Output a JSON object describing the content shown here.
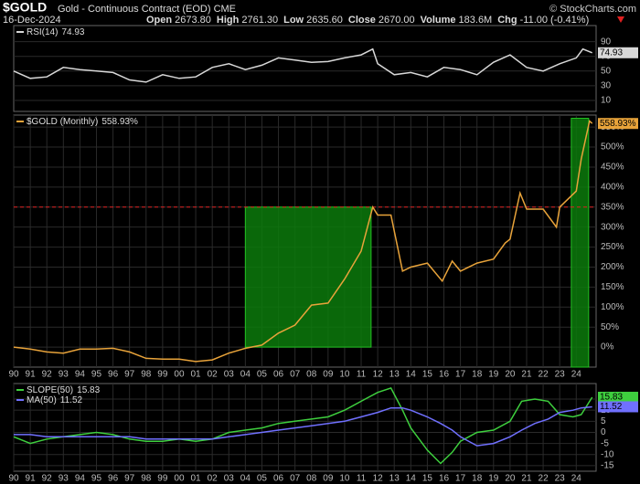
{
  "header": {
    "symbol": "$GOLD",
    "name": "Gold - Continuous Contract (EOD)",
    "exchange": "CME",
    "credit": "© StockCharts.com",
    "date": "16-Dec-2024",
    "quote": [
      {
        "label": "Open",
        "value": "2673.80"
      },
      {
        "label": "High",
        "value": "2761.30"
      },
      {
        "label": "Low",
        "value": "2635.60"
      },
      {
        "label": "Close",
        "value": "2670.00"
      },
      {
        "label": "Volume",
        "value": "183.6M"
      },
      {
        "label": "Chg",
        "value": "-11.00 (-0.41%)"
      }
    ]
  },
  "chart_data": [
    {
      "type": "line",
      "ylim": [
        -5,
        112
      ],
      "yticks": [
        90,
        70,
        50,
        30,
        10
      ],
      "grid": true,
      "x": [
        1990,
        1991,
        1992,
        1993,
        1994,
        1995,
        1996,
        1997,
        1998,
        1999,
        2000,
        2001,
        2002,
        2003,
        2004,
        2005,
        2006,
        2007,
        2008,
        2009,
        2010,
        2011,
        2011.7,
        2012,
        2013,
        2014,
        2015,
        2016,
        2017,
        2018,
        2019,
        2020,
        2021,
        2022,
        2023,
        2024,
        2024.4,
        2024.96
      ],
      "xlim": [
        1990,
        2025.2
      ],
      "series": [
        {
          "name": "RSI(14)",
          "color": "#d8d8d8",
          "values": [
            50,
            40,
            42,
            55,
            52,
            50,
            48,
            38,
            35,
            45,
            40,
            42,
            55,
            60,
            52,
            58,
            68,
            65,
            62,
            63,
            68,
            72,
            80,
            60,
            45,
            48,
            42,
            55,
            52,
            45,
            62,
            72,
            55,
            50,
            60,
            68,
            80,
            74.93
          ]
        }
      ]
    },
    {
      "type": "line",
      "ylim": [
        -50,
        580
      ],
      "xlim": [
        1990,
        2025.2
      ],
      "grid": true,
      "yticks": [
        {
          "value": 550,
          "label": "550%"
        },
        {
          "value": 500,
          "label": "500%"
        },
        {
          "value": 450,
          "label": "450%"
        },
        {
          "value": 400,
          "label": "400%"
        },
        {
          "value": 350,
          "label": "350%"
        },
        {
          "value": 300,
          "label": "300%"
        },
        {
          "value": 250,
          "label": "250%"
        },
        {
          "value": 200,
          "label": "200%"
        },
        {
          "value": 150,
          "label": "150%"
        },
        {
          "value": 100,
          "label": "100%"
        },
        {
          "value": 50,
          "label": "50%"
        },
        {
          "value": 0,
          "label": "0%"
        }
      ],
      "xticks": [
        {
          "value": 1990,
          "label": "90"
        },
        {
          "value": 1991,
          "label": "91"
        },
        {
          "value": 1992,
          "label": "92"
        },
        {
          "value": 1993,
          "label": "93"
        },
        {
          "value": 1994,
          "label": "94"
        },
        {
          "value": 1995,
          "label": "95"
        },
        {
          "value": 1996,
          "label": "96"
        },
        {
          "value": 1997,
          "label": "97"
        },
        {
          "value": 1998,
          "label": "98"
        },
        {
          "value": 1999,
          "label": "99"
        },
        {
          "value": 2000,
          "label": "00"
        },
        {
          "value": 2001,
          "label": "01"
        },
        {
          "value": 2002,
          "label": "02"
        },
        {
          "value": 2003,
          "label": "03"
        },
        {
          "value": 2004,
          "label": "04"
        },
        {
          "value": 2005,
          "label": "05"
        },
        {
          "value": 2006,
          "label": "06"
        },
        {
          "value": 2007,
          "label": "07"
        },
        {
          "value": 2008,
          "label": "08"
        },
        {
          "value": 2009,
          "label": "09"
        },
        {
          "value": 2010,
          "label": "10"
        },
        {
          "value": 2011,
          "label": "11"
        },
        {
          "value": 2012,
          "label": "12"
        },
        {
          "value": 2013,
          "label": "13"
        },
        {
          "value": 2014,
          "label": "14"
        },
        {
          "value": 2015,
          "label": "15"
        },
        {
          "value": 2016,
          "label": "16"
        },
        {
          "value": 2017,
          "label": "17"
        },
        {
          "value": 2018,
          "label": "18"
        },
        {
          "value": 2019,
          "label": "19"
        },
        {
          "value": 2020,
          "label": "20"
        },
        {
          "value": 2021,
          "label": "21"
        },
        {
          "value": 2022,
          "label": "22"
        },
        {
          "value": 2023,
          "label": "23"
        },
        {
          "value": 2024,
          "label": "24"
        }
      ],
      "highlights": [
        {
          "x": [
            2004,
            2011.6
          ],
          "y": [
            0,
            350
          ],
          "color": "#0c7a0c"
        },
        {
          "x": [
            2023.7,
            2024.75
          ],
          "y": [
            -50,
            572
          ],
          "color": "#0c7a0c"
        }
      ],
      "reference_line": {
        "value": 350,
        "color": "#e02020"
      },
      "x": [
        1990,
        1991,
        1992,
        1993,
        1994,
        1995,
        1996,
        1997,
        1998,
        1999,
        2000,
        2001,
        2002,
        2003,
        2004,
        2005,
        2006,
        2007,
        2008,
        2009,
        2010,
        2011,
        2011.7,
        2012,
        2012.8,
        2013.5,
        2014,
        2015,
        2015.9,
        2016.5,
        2017,
        2018,
        2019,
        2019.7,
        2020,
        2020.6,
        2021,
        2022,
        2022.8,
        2023,
        2024,
        2024.3,
        2024.8,
        2024.96
      ],
      "series": [
        {
          "name": "$GOLD (Monthly)",
          "color": "#e8a33a",
          "last_value_label": "558.93%",
          "values": [
            0,
            -5,
            -12,
            -15,
            -5,
            -5,
            -3,
            -12,
            -28,
            -30,
            -30,
            -36,
            -32,
            -15,
            -3,
            5,
            35,
            55,
            105,
            110,
            170,
            240,
            350,
            330,
            330,
            190,
            200,
            210,
            165,
            215,
            190,
            210,
            220,
            260,
            270,
            385,
            345,
            345,
            300,
            350,
            390,
            470,
            565,
            558.93
          ]
        }
      ]
    },
    {
      "type": "line",
      "ylim": [
        -17.5,
        22
      ],
      "xlim": [
        1990,
        2025.2
      ],
      "grid": true,
      "yticks": [
        15,
        10,
        5,
        0,
        -5,
        -10,
        -15
      ],
      "xticks": [
        {
          "value": 1990,
          "label": "90"
        },
        {
          "value": 1991,
          "label": "91"
        },
        {
          "value": 1992,
          "label": "92"
        },
        {
          "value": 1993,
          "label": "93"
        },
        {
          "value": 1994,
          "label": "94"
        },
        {
          "value": 1995,
          "label": "95"
        },
        {
          "value": 1996,
          "label": "96"
        },
        {
          "value": 1997,
          "label": "97"
        },
        {
          "value": 1998,
          "label": "98"
        },
        {
          "value": 1999,
          "label": "99"
        },
        {
          "value": 2000,
          "label": "00"
        },
        {
          "value": 2001,
          "label": "01"
        },
        {
          "value": 2002,
          "label": "02"
        },
        {
          "value": 2003,
          "label": "03"
        },
        {
          "value": 2004,
          "label": "04"
        },
        {
          "value": 2005,
          "label": "05"
        },
        {
          "value": 2006,
          "label": "06"
        },
        {
          "value": 2007,
          "label": "07"
        },
        {
          "value": 2008,
          "label": "08"
        },
        {
          "value": 2009,
          "label": "09"
        },
        {
          "value": 2010,
          "label": "10"
        },
        {
          "value": 2011,
          "label": "11"
        },
        {
          "value": 2012,
          "label": "12"
        },
        {
          "value": 2013,
          "label": "13"
        },
        {
          "value": 2014,
          "label": "14"
        },
        {
          "value": 2015,
          "label": "15"
        },
        {
          "value": 2016,
          "label": "16"
        },
        {
          "value": 2017,
          "label": "17"
        },
        {
          "value": 2018,
          "label": "18"
        },
        {
          "value": 2019,
          "label": "19"
        },
        {
          "value": 2020,
          "label": "20"
        },
        {
          "value": 2021,
          "label": "21"
        },
        {
          "value": 2022,
          "label": "22"
        },
        {
          "value": 2023,
          "label": "23"
        },
        {
          "value": 2024,
          "label": "24"
        }
      ],
      "x": [
        1990,
        1991,
        1992,
        1993,
        1994,
        1995,
        1996,
        1997,
        1998,
        1999,
        2000,
        2001,
        2002,
        2003,
        2004,
        2005,
        2006,
        2007,
        2008,
        2009,
        2010,
        2011,
        2012,
        2012.8,
        2013.5,
        2014,
        2015,
        2015.8,
        2016.5,
        2017,
        2018,
        2019,
        2020,
        2020.7,
        2021.5,
        2022.3,
        2023,
        2023.8,
        2024.3,
        2024.96
      ],
      "series": [
        {
          "name": "SLOPE(50)",
          "color": "#3ecf3e",
          "values": [
            -2,
            -5,
            -3,
            -2,
            -1,
            0,
            -1,
            -3,
            -4,
            -4,
            -3,
            -4,
            -3,
            0,
            1,
            2,
            4,
            5,
            6,
            7,
            10,
            14,
            18,
            20,
            10,
            2,
            -8,
            -14,
            -9,
            -4,
            0,
            1,
            5,
            14,
            15,
            14,
            8,
            7,
            8,
            15.83
          ]
        },
        {
          "name": "MA(50)",
          "color": "#7070ff",
          "values": [
            -1,
            -1,
            -2,
            -2,
            -2,
            -2,
            -2,
            -2,
            -3,
            -3,
            -3,
            -3,
            -3,
            -2,
            -1,
            0,
            1,
            2,
            3,
            4,
            5,
            7,
            9,
            11,
            11,
            10,
            7,
            4,
            1,
            -2,
            -6,
            -5,
            -2,
            1,
            4,
            6,
            9,
            10,
            11,
            11.52
          ]
        }
      ]
    }
  ]
}
